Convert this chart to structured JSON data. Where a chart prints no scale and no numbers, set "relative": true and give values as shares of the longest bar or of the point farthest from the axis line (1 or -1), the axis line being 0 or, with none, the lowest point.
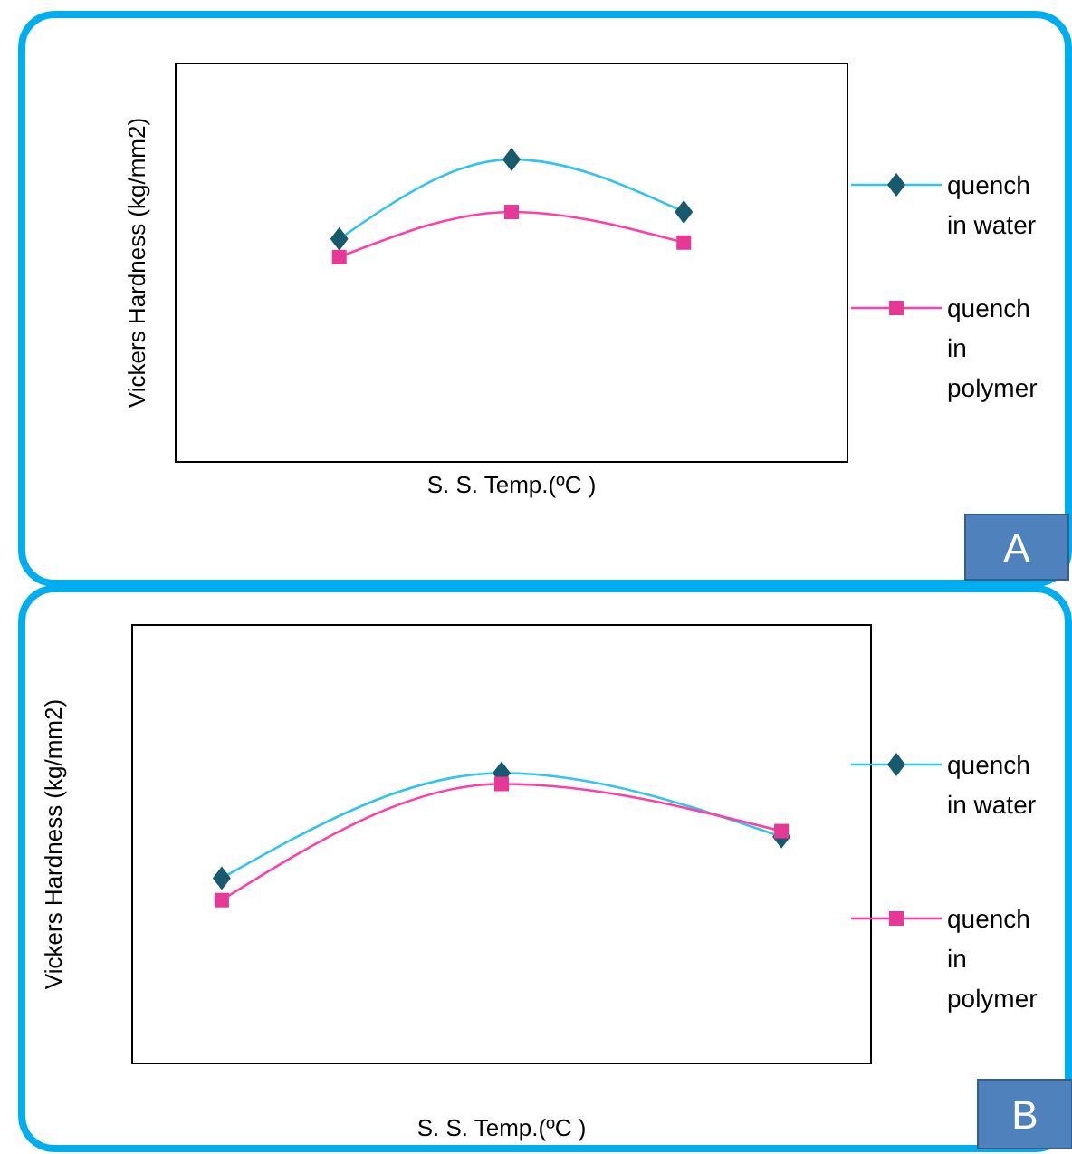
{
  "chart_data": [
    {
      "type": "line",
      "xlabel": "S. S. Temp.(ºC )",
      "ylabel": "Vickers Hardness  (kg/mm2)",
      "categories": [
        null,
        null,
        null
      ],
      "relative": true,
      "legend": "right",
      "annotations": [
        "A"
      ],
      "series": [
        {
          "name": "quench in water",
          "color": "#33c3ef",
          "marker": "diamond",
          "values": [
            0.737,
            1,
            0.826
          ]
        },
        {
          "name": "quench in polymer",
          "color": "#ff3fa6",
          "marker": "square",
          "values": [
            0.677,
            0.826,
            0.725
          ]
        }
      ]
    },
    {
      "type": "line",
      "xlabel": "S. S. Temp.(ºC )",
      "ylabel": "Vickers Hardness  (kg/mm2)",
      "categories": [
        null,
        null,
        null
      ],
      "relative": true,
      "legend": "right",
      "annotations": [
        "B"
      ],
      "series": [
        {
          "name": "quench in water",
          "color": "#33c3ef",
          "marker": "diamond",
          "values": [
            0.638,
            1,
            0.781
          ]
        },
        {
          "name": "quench in polymer",
          "color": "#ff3fa6",
          "marker": "square",
          "values": [
            0.5625,
            0.9625,
            0.8
          ]
        }
      ]
    }
  ]
}
